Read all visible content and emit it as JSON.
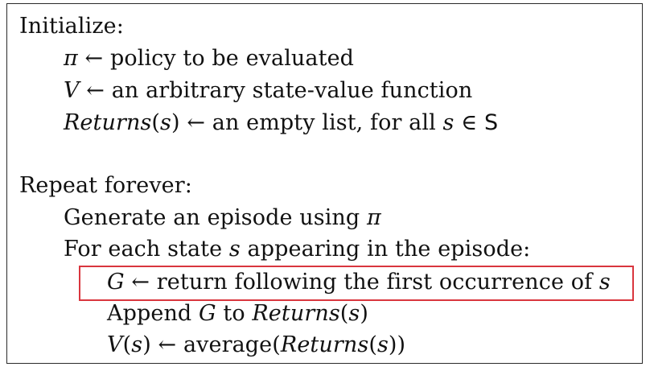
{
  "algorithm": {
    "init_header": "Initialize:",
    "init_lines": [
      {
        "lhs": "π",
        "arrow": "←",
        "rhs": "policy to be evaluated"
      },
      {
        "lhs": "V",
        "arrow": "←",
        "rhs": "an arbitrary state-value function"
      },
      {
        "lhs_func": "Returns",
        "lhs_arg_open": "(",
        "lhs_arg": "s",
        "lhs_arg_close": ")",
        "arrow": "←",
        "rhs": "an empty list, for all",
        "var": "s",
        "in": "∈",
        "set": "S"
      }
    ],
    "loop_header": "Repeat forever:",
    "loop_lines": [
      {
        "text": "Generate an episode using",
        "var": "π"
      },
      {
        "text_a": "For each state",
        "var": "s",
        "text_b": "appearing in the episode:"
      }
    ],
    "inner_lines": [
      {
        "lhs": "G",
        "arrow": "←",
        "rhs": "return following the first occurrence of",
        "var": "s",
        "highlighted": true
      },
      {
        "text_a": "Append",
        "var": "G",
        "text_b": "to",
        "func": "Returns",
        "arg_open": "(",
        "arg": "s",
        "arg_close": ")"
      },
      {
        "lhs_func": "V",
        "lhs_open": "(",
        "lhs_arg": "s",
        "lhs_close": ")",
        "arrow": "←",
        "rhs_a": "average(",
        "func": "Returns",
        "arg_open": "(",
        "arg": "s",
        "arg_close": "))"
      }
    ]
  },
  "colors": {
    "highlight": "#d9363e",
    "border": "#2a2a2a",
    "text": "#111111"
  }
}
